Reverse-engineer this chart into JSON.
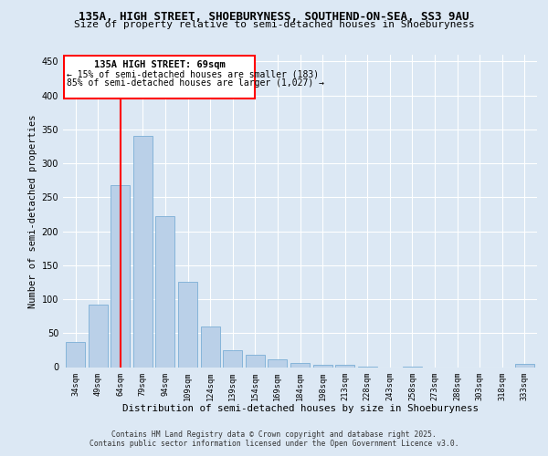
{
  "title_line1": "135A, HIGH STREET, SHOEBURYNESS, SOUTHEND-ON-SEA, SS3 9AU",
  "title_line2": "Size of property relative to semi-detached houses in Shoeburyness",
  "xlabel": "Distribution of semi-detached houses by size in Shoeburyness",
  "ylabel": "Number of semi-detached properties",
  "categories": [
    "34sqm",
    "49sqm",
    "64sqm",
    "79sqm",
    "94sqm",
    "109sqm",
    "124sqm",
    "139sqm",
    "154sqm",
    "169sqm",
    "184sqm",
    "198sqm",
    "213sqm",
    "228sqm",
    "243sqm",
    "258sqm",
    "273sqm",
    "288sqm",
    "303sqm",
    "318sqm",
    "333sqm"
  ],
  "values": [
    37,
    92,
    268,
    340,
    222,
    125,
    60,
    25,
    18,
    12,
    6,
    4,
    4,
    1,
    0,
    1,
    0,
    0,
    0,
    0,
    5
  ],
  "bar_color": "#bad0e8",
  "bar_edge_color": "#7aaed6",
  "vline_x": 2,
  "vline_color": "red",
  "annotation_title": "135A HIGH STREET: 69sqm",
  "annotation_line1": "← 15% of semi-detached houses are smaller (183)",
  "annotation_line2": "85% of semi-detached houses are larger (1,027) →",
  "ylim": [
    0,
    460
  ],
  "yticks": [
    0,
    50,
    100,
    150,
    200,
    250,
    300,
    350,
    400,
    450
  ],
  "footer_line1": "Contains HM Land Registry data © Crown copyright and database right 2025.",
  "footer_line2": "Contains public sector information licensed under the Open Government Licence v3.0.",
  "bg_color": "#dce8f4",
  "plot_bg_color": "#dce8f4"
}
